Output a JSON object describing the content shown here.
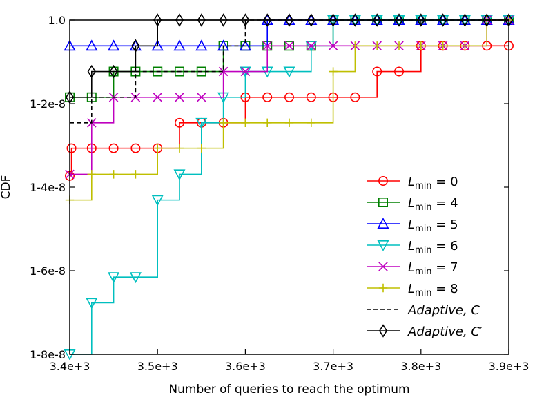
{
  "chart_data": {
    "type": "line",
    "xlabel": "Number of queries to reach the optimum",
    "ylabel": "CDF",
    "xlim": [
      3400,
      3900
    ],
    "ylim": [
      0.8,
      1.0
    ],
    "x_ticks": [
      3400,
      3500,
      3600,
      3700,
      3800,
      3900
    ],
    "x_tick_labels": [
      "3.4e+3",
      "3.5e+3",
      "3.6e+3",
      "3.7e+3",
      "3.8e+3",
      "3.9e+3"
    ],
    "y_ticks": [
      0.8,
      0.85,
      0.9,
      0.95,
      1.0
    ],
    "y_tick_labels": [
      "1-8e-8",
      "1-6e-8",
      "1-4e-8",
      "1-2e-8",
      "1.0"
    ],
    "grid": false,
    "legend_position": "lower-right",
    "series": [
      {
        "name": "L_min = 0",
        "legend_main": "L",
        "legend_sub": "min",
        "legend_tail": " = 0",
        "color": "#ff0000",
        "marker": "circle",
        "dash": "solid",
        "x": [
          3400,
          3402,
          3425,
          3450,
          3475,
          3500,
          3525,
          3550,
          3575,
          3600,
          3625,
          3650,
          3675,
          3700,
          3725,
          3750,
          3775,
          3800,
          3825,
          3850,
          3875,
          3900
        ],
        "y": [
          0.9067,
          0.9233,
          0.9233,
          0.9233,
          0.9233,
          0.9233,
          0.9385,
          0.9385,
          0.9385,
          0.9538,
          0.9538,
          0.9538,
          0.9538,
          0.9538,
          0.9538,
          0.9692,
          0.9692,
          0.9846,
          0.9846,
          0.9846,
          0.9846,
          0.9846
        ]
      },
      {
        "name": "L_min = 4",
        "legend_main": "L",
        "legend_sub": "min",
        "legend_tail": " = 4",
        "color": "#008000",
        "marker": "square",
        "dash": "solid",
        "x": [
          3400,
          3425,
          3450,
          3475,
          3500,
          3525,
          3550,
          3575,
          3600,
          3625,
          3650,
          3675,
          3700,
          3725,
          3750,
          3775,
          3800,
          3825,
          3850,
          3875,
          3900
        ],
        "y": [
          0.9538,
          0.9538,
          0.9692,
          0.9692,
          0.9692,
          0.9692,
          0.9692,
          0.9846,
          0.9846,
          0.9846,
          0.9846,
          0.9846,
          1.0,
          1.0,
          1.0,
          1.0,
          1.0,
          1.0,
          1.0,
          1.0,
          1.0
        ]
      },
      {
        "name": "L_min = 5",
        "legend_main": "L",
        "legend_sub": "min",
        "legend_tail": " = 5",
        "color": "#0000ff",
        "marker": "triangle-up",
        "dash": "solid",
        "x": [
          3400,
          3425,
          3450,
          3475,
          3500,
          3525,
          3550,
          3575,
          3600,
          3625,
          3650,
          3675,
          3700,
          3725,
          3750,
          3775,
          3800,
          3825,
          3850,
          3875,
          3900
        ],
        "y": [
          0.9846,
          0.9846,
          0.9846,
          0.9846,
          0.9846,
          0.9846,
          0.9846,
          0.9846,
          0.9846,
          1.0,
          1.0,
          1.0,
          1.0,
          1.0,
          1.0,
          1.0,
          1.0,
          1.0,
          1.0,
          1.0,
          1.0
        ]
      },
      {
        "name": "L_min = 6",
        "legend_main": "L",
        "legend_sub": "min",
        "legend_tail": " = 6",
        "color": "#00bfbf",
        "marker": "triangle-down",
        "dash": "solid",
        "x": [
          3400,
          3425,
          3450,
          3475,
          3500,
          3525,
          3550,
          3575,
          3600,
          3625,
          3650,
          3675,
          3700,
          3725,
          3750,
          3775,
          3800,
          3825,
          3850,
          3875,
          3900
        ],
        "y": [
          0.8,
          0.8308,
          0.8462,
          0.8462,
          0.8923,
          0.9077,
          0.9385,
          0.9538,
          0.9692,
          0.9692,
          0.9692,
          0.9846,
          1.0,
          1.0,
          1.0,
          1.0,
          1.0,
          1.0,
          1.0,
          1.0,
          1.0
        ]
      },
      {
        "name": "L_min = 7",
        "legend_main": "L",
        "legend_sub": "min",
        "legend_tail": " = 7",
        "color": "#bf00bf",
        "marker": "x",
        "dash": "solid",
        "x": [
          3400,
          3425,
          3450,
          3475,
          3500,
          3525,
          3550,
          3575,
          3600,
          3625,
          3650,
          3675,
          3700,
          3725,
          3750,
          3775,
          3800,
          3825,
          3850,
          3875,
          3900
        ],
        "y": [
          0.9077,
          0.9385,
          0.9538,
          0.9538,
          0.9538,
          0.9538,
          0.9538,
          0.9692,
          0.9692,
          0.9846,
          0.9846,
          0.9846,
          0.9846,
          0.9846,
          0.9846,
          0.9846,
          0.9846,
          0.9846,
          0.9846,
          1.0,
          1.0
        ]
      },
      {
        "name": "L_min = 8",
        "legend_main": "L",
        "legend_sub": "min",
        "legend_tail": " = 8",
        "color": "#bfbf00",
        "marker": "plus",
        "dash": "solid",
        "x": [
          3400,
          3425,
          3450,
          3475,
          3500,
          3525,
          3550,
          3575,
          3600,
          3625,
          3650,
          3675,
          3700,
          3725,
          3750,
          3775,
          3800,
          3825,
          3850,
          3875,
          3900
        ],
        "y": [
          0.8923,
          0.9077,
          0.9077,
          0.9077,
          0.9233,
          0.9233,
          0.9233,
          0.9385,
          0.9385,
          0.9385,
          0.9385,
          0.9385,
          0.9692,
          0.9846,
          0.9846,
          0.9846,
          0.9846,
          0.9846,
          0.9846,
          1.0,
          1.0
        ]
      },
      {
        "name": "Adaptive, C",
        "legend_main": "Adaptive, C",
        "legend_sub": "",
        "legend_tail": "",
        "color": "#000000",
        "marker": "none",
        "dash": "dashed",
        "x": [
          3400,
          3425,
          3450,
          3475,
          3500,
          3525,
          3550,
          3575,
          3600,
          3625,
          3650,
          3675,
          3700,
          3725,
          3750,
          3775,
          3800,
          3825,
          3850,
          3875,
          3900
        ],
        "y": [
          0.9385,
          0.9538,
          0.9538,
          0.9692,
          0.9692,
          0.9692,
          0.9692,
          0.9846,
          1.0,
          1.0,
          1.0,
          1.0,
          1.0,
          1.0,
          1.0,
          1.0,
          1.0,
          1.0,
          1.0,
          1.0,
          1.0
        ]
      },
      {
        "name": "Adaptive, C′",
        "legend_main": "Adaptive, C′",
        "legend_sub": "",
        "legend_tail": "",
        "color": "#000000",
        "marker": "diamond",
        "dash": "solid",
        "x": [
          3400,
          3425,
          3450,
          3475,
          3500,
          3525,
          3550,
          3575,
          3600,
          3625,
          3650,
          3675,
          3700,
          3725,
          3750,
          3775,
          3800,
          3825,
          3850,
          3875,
          3900
        ],
        "y": [
          0.9538,
          0.9692,
          0.9692,
          0.9846,
          1.0,
          1.0,
          1.0,
          1.0,
          1.0,
          1.0,
          1.0,
          1.0,
          1.0,
          1.0,
          1.0,
          1.0,
          1.0,
          1.0,
          1.0,
          1.0,
          1.0
        ]
      }
    ]
  }
}
